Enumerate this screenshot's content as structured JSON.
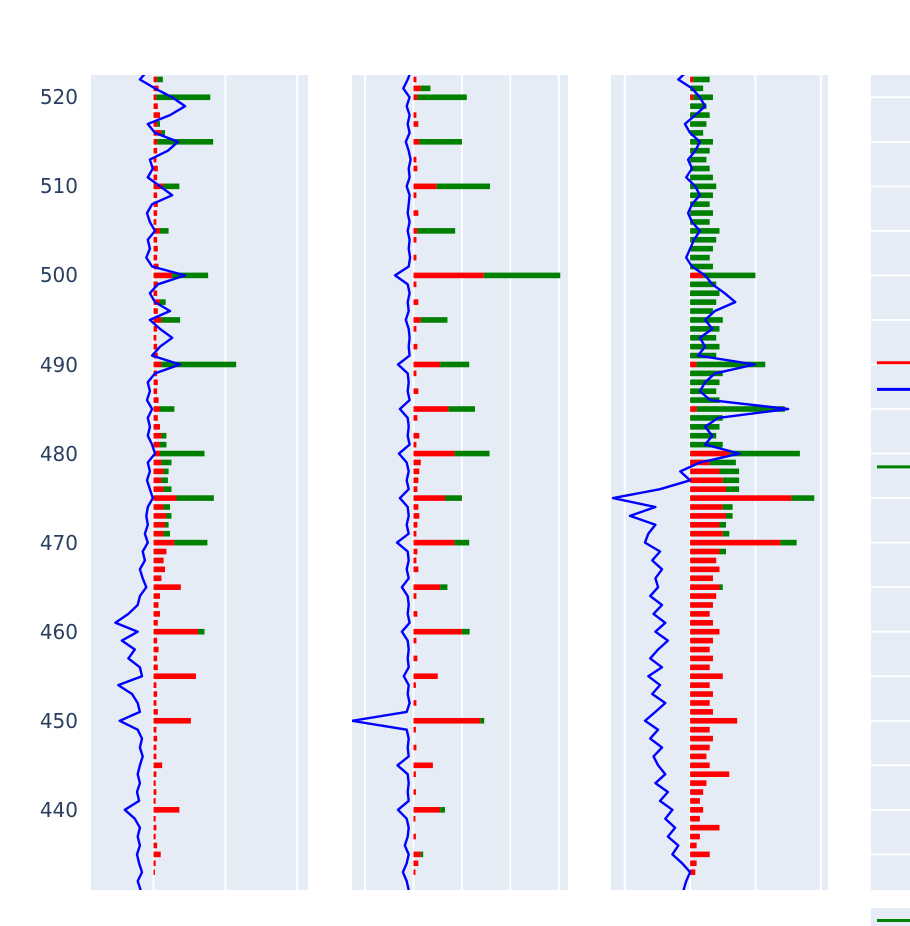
{
  "chart_data": {
    "type": "bar",
    "orientation": "horizontal",
    "title": "",
    "legend": "none-visible",
    "grid": "on",
    "colors": {
      "background": "#e5ecf6",
      "grid": "#ffffff",
      "red": "#ff0000",
      "green": "#008000",
      "blue": "#0000ff",
      "tick": "#2a3f5f"
    },
    "y_axis": {
      "range": [
        431.0,
        522.5
      ],
      "ticks": [
        520,
        510,
        500,
        490,
        480,
        470,
        460,
        450,
        440
      ]
    },
    "bottom_fragment": {
      "color": "green"
    },
    "panels": [
      {
        "name": "panel-1",
        "x_range": [
          -0.87,
          2.15
        ],
        "x_gridlines": [
          0,
          1,
          2
        ],
        "bars": {
          "y_start": 523,
          "y_step": -1,
          "red": [
            0.04,
            0.05,
            0.07,
            0.04,
            0.06,
            0.09,
            0.05,
            0.11,
            0.05,
            0.05,
            0.04,
            0.06,
            0.05,
            0.14,
            0.05,
            0.06,
            0.05,
            0.04,
            0.09,
            0.05,
            0.06,
            0.05,
            0.07,
            0.26,
            0.06,
            0.05,
            0.09,
            0.06,
            0.11,
            0.05,
            0.04,
            0.05,
            0.06,
            0.11,
            0.05,
            0.06,
            0.05,
            0.07,
            0.09,
            0.06,
            0.09,
            0.11,
            0.09,
            0.09,
            0.11,
            0.14,
            0.11,
            0.14,
            0.32,
            0.14,
            0.18,
            0.16,
            0.14,
            0.29,
            0.18,
            0.14,
            0.16,
            0.11,
            0.38,
            0.09,
            0.07,
            0.09,
            0.06,
            0.62,
            0.05,
            0.07,
            0.05,
            0.06,
            0.59,
            0.04,
            0.05,
            0.04,
            0.06,
            0.52,
            0.04,
            0.05,
            0.04,
            0.04,
            0.12,
            0.04,
            0.03,
            0.04,
            0.03,
            0.36,
            0.03,
            0.04,
            0.03,
            0.05,
            0.1,
            0.03,
            0.02
          ],
          "green": [
            0,
            0.08,
            0,
            0.75,
            0,
            0,
            0.04,
            0.05,
            0.78,
            0,
            0,
            0,
            0,
            0.22,
            0,
            0,
            0,
            0,
            0.12,
            0,
            0,
            0,
            0,
            0.5,
            0,
            0,
            0.08,
            0,
            0.26,
            0,
            0,
            0,
            0,
            1.04,
            0,
            0,
            0,
            0,
            0.2,
            0,
            0,
            0.07,
            0.09,
            0.62,
            0.14,
            0.07,
            0.09,
            0.11,
            0.52,
            0.09,
            0.07,
            0.05,
            0.09,
            0.46,
            0,
            0,
            0,
            0,
            0,
            0,
            0,
            0,
            0,
            0.09,
            0,
            0,
            0,
            0,
            0,
            0,
            0,
            0,
            0,
            0,
            0,
            0,
            0,
            0,
            0,
            0,
            0,
            0,
            0,
            0,
            0,
            0,
            0,
            0,
            0,
            0,
            0
          ]
        },
        "line": {
          "y_start": 523,
          "y_step": -1,
          "x": [
            -0.08,
            -0.19,
            0.02,
            0.26,
            0.44,
            0.23,
            -0.08,
            0.02,
            0.34,
            0.2,
            -0.05,
            -0.01,
            -0.08,
            0.09,
            0.26,
            -0.02,
            -0.09,
            -0.05,
            0.02,
            -0.08,
            -0.05,
            -0.1,
            -0.02,
            0.44,
            0.06,
            -0.05,
            0.02,
            0.23,
            -0.05,
            0.09,
            0.26,
            0.09,
            -0.02,
            0.37,
            0.02,
            -0.08,
            -0.05,
            -0.09,
            -0.02,
            -0.08,
            -0.05,
            -0.08,
            -0.02,
            0.02,
            -0.08,
            -0.05,
            -0.09,
            -0.05,
            -0.01,
            -0.08,
            -0.1,
            -0.08,
            -0.12,
            -0.08,
            -0.15,
            -0.12,
            -0.19,
            -0.15,
            -0.1,
            -0.19,
            -0.22,
            -0.35,
            -0.53,
            -0.22,
            -0.44,
            -0.26,
            -0.35,
            -0.19,
            -0.16,
            -0.49,
            -0.3,
            -0.22,
            -0.19,
            -0.47,
            -0.22,
            -0.16,
            -0.19,
            -0.15,
            -0.19,
            -0.22,
            -0.19,
            -0.23,
            -0.2,
            -0.4,
            -0.26,
            -0.19,
            -0.22,
            -0.19,
            -0.23,
            -0.2,
            -0.16,
            -0.22,
            -0.18
          ]
        }
      },
      {
        "name": "panel-2",
        "x_range": [
          -1.27,
          3.19
        ],
        "x_gridlines": [
          -1,
          0,
          1,
          2,
          3
        ],
        "bars": {
          "y_start": 523,
          "y_step": -1,
          "red": [
            0,
            0.06,
            0.15,
            0.08,
            0,
            0.06,
            0.1,
            0,
            0.12,
            0,
            0.06,
            0.08,
            0,
            0.48,
            0.06,
            0,
            0.1,
            0,
            0.08,
            0.06,
            0,
            0.06,
            0,
            1.45,
            0.06,
            0,
            0.1,
            0,
            0.15,
            0.06,
            0,
            0.08,
            0,
            0.55,
            0.06,
            0,
            0.1,
            0,
            0.72,
            0.08,
            0,
            0.12,
            0.06,
            0.85,
            0.15,
            0.12,
            0.1,
            0.08,
            0.65,
            0.1,
            0.12,
            0.08,
            0.06,
            0.85,
            0.08,
            0.06,
            0.1,
            0,
            0.55,
            0.06,
            0,
            0.08,
            0,
            1.0,
            0.06,
            0,
            0.08,
            0,
            0.5,
            0.05,
            0,
            0.06,
            0,
            1.38,
            0.05,
            0,
            0.06,
            0,
            0.4,
            0.05,
            0,
            0.05,
            0,
            0.55,
            0.04,
            0,
            0.05,
            0,
            0.15,
            0.1,
            0.04
          ],
          "green": [
            0,
            0,
            0.2,
            1.02,
            0,
            0,
            0,
            0,
            0.88,
            0,
            0,
            0,
            0,
            1.1,
            0,
            0,
            0,
            0,
            0.78,
            0,
            0,
            0,
            0,
            1.58,
            0,
            0,
            0,
            0,
            0.55,
            0,
            0,
            0,
            0,
            0.6,
            0,
            0,
            0,
            0,
            0.55,
            0,
            0,
            0,
            0,
            0.72,
            0,
            0,
            0,
            0,
            0.35,
            0,
            0,
            0,
            0,
            0.3,
            0,
            0,
            0,
            0,
            0.15,
            0,
            0,
            0,
            0,
            0.16,
            0,
            0,
            0,
            0,
            0,
            0,
            0,
            0,
            0,
            0.08,
            0,
            0,
            0,
            0,
            0,
            0,
            0,
            0,
            0,
            0.1,
            0,
            0,
            0,
            0,
            0.05,
            0,
            0
          ]
        },
        "line": {
          "y_start": 523,
          "y_step": -1,
          "x": [
            -0.05,
            -0.12,
            -0.21,
            -0.08,
            -0.14,
            -0.08,
            -0.12,
            -0.08,
            -0.16,
            -0.1,
            -0.06,
            -0.1,
            -0.08,
            -0.14,
            -0.08,
            -0.1,
            -0.12,
            -0.08,
            -0.12,
            -0.08,
            -0.1,
            -0.07,
            -0.1,
            -0.38,
            -0.12,
            -0.08,
            -0.12,
            -0.1,
            -0.16,
            -0.1,
            -0.08,
            -0.1,
            -0.08,
            -0.32,
            -0.12,
            -0.1,
            -0.12,
            -0.08,
            -0.28,
            -0.12,
            -0.1,
            -0.12,
            -0.08,
            -0.3,
            -0.14,
            -0.1,
            -0.14,
            -0.1,
            -0.28,
            -0.12,
            -0.1,
            -0.14,
            -0.1,
            -0.34,
            -0.12,
            -0.1,
            -0.14,
            -0.1,
            -0.24,
            -0.12,
            -0.1,
            -0.12,
            -0.08,
            -0.24,
            -0.12,
            -0.1,
            -0.12,
            -0.1,
            -0.2,
            -0.1,
            -0.12,
            -0.08,
            -0.14,
            -1.27,
            -0.14,
            -0.1,
            -0.12,
            -0.1,
            -0.33,
            -0.12,
            -0.1,
            -0.12,
            -0.1,
            -0.32,
            -0.14,
            -0.1,
            -0.12,
            -0.18,
            -0.1,
            -0.14,
            -0.22,
            -0.14,
            -0.1
          ]
        }
      },
      {
        "name": "panel-3",
        "x_range": [
          -1.21,
          2.11
        ],
        "x_gridlines": [
          -1,
          0,
          1,
          2
        ],
        "bars": {
          "y_start": 523,
          "y_step": -1,
          "red": [
            0,
            0.05,
            0,
            0.05,
            0,
            0,
            0,
            0,
            0,
            0,
            0,
            0,
            0,
            0,
            0,
            0,
            0,
            0,
            0,
            0,
            0,
            0,
            0,
            0.2,
            0,
            0,
            0,
            0,
            0,
            0,
            0,
            0,
            0,
            0.1,
            0,
            0,
            0,
            0,
            0.1,
            0,
            0,
            0,
            0,
            0.6,
            0.3,
            0.45,
            0.5,
            0.55,
            1.55,
            0.5,
            0.55,
            0.45,
            0.5,
            1.38,
            0.45,
            0.4,
            0.45,
            0.35,
            0.45,
            0.4,
            0.35,
            0.3,
            0.35,
            0.45,
            0.35,
            0.3,
            0.35,
            0.3,
            0.5,
            0.3,
            0.35,
            0.3,
            0.35,
            0.72,
            0.3,
            0.35,
            0.3,
            0.25,
            0.3,
            0.6,
            0.25,
            0.2,
            0.15,
            0.2,
            0.15,
            0.45,
            0.15,
            0.1,
            0.3,
            0.1,
            0.08
          ],
          "green": [
            0.15,
            0.25,
            0.2,
            0.3,
            0.25,
            0.3,
            0.25,
            0.2,
            0.35,
            0.3,
            0.25,
            0.3,
            0.35,
            0.4,
            0.35,
            0.3,
            0.35,
            0.3,
            0.45,
            0.4,
            0.35,
            0.3,
            0.35,
            0.8,
            0.4,
            0.45,
            0.4,
            0.35,
            0.5,
            0.45,
            0.4,
            0.45,
            0.4,
            1.05,
            0.5,
            0.45,
            0.4,
            0.45,
            1.35,
            0.5,
            0.45,
            0.4,
            0.5,
            1.08,
            0.4,
            0.3,
            0.25,
            0.2,
            0.35,
            0.15,
            0.1,
            0.1,
            0.1,
            0.25,
            0.1,
            0,
            0,
            0,
            0.05,
            0,
            0,
            0,
            0,
            0,
            0,
            0,
            0,
            0,
            0,
            0,
            0,
            0,
            0,
            0,
            0,
            0,
            0,
            0,
            0,
            0,
            0,
            0,
            0,
            0,
            0,
            0,
            0,
            0,
            0,
            0,
            0
          ]
        },
        "line": {
          "y_start": 523,
          "y_step": -1,
          "x": [
            -0.03,
            -0.18,
            0.03,
            0.15,
            0.23,
            0.08,
            -0.08,
            0,
            0.15,
            0.08,
            -0.03,
            0.03,
            -0.06,
            0.08,
            0.15,
            0.03,
            -0.03,
            0.03,
            0.15,
            0.06,
            0,
            -0.06,
            0.03,
            0.23,
            0.34,
            0.53,
            0.69,
            0.38,
            0.23,
            0.34,
            0.15,
            0.23,
            0.12,
            0.99,
            0.38,
            0.23,
            0.15,
            0.31,
            1.5,
            0.43,
            0.23,
            0.34,
            0.23,
            0.76,
            0.15,
            -0.15,
            0,
            -0.46,
            -1.18,
            -0.53,
            -0.92,
            -0.53,
            -0.64,
            -0.69,
            -0.46,
            -0.58,
            -0.43,
            -0.53,
            -0.49,
            -0.61,
            -0.43,
            -0.56,
            -0.38,
            -0.53,
            -0.34,
            -0.49,
            -0.61,
            -0.43,
            -0.64,
            -0.46,
            -0.58,
            -0.38,
            -0.53,
            -0.69,
            -0.49,
            -0.61,
            -0.43,
            -0.56,
            -0.49,
            -0.38,
            -0.53,
            -0.34,
            -0.46,
            -0.27,
            -0.38,
            -0.23,
            -0.34,
            -0.18,
            -0.27,
            -0.12,
            0,
            -0.06,
            -0.1
          ]
        }
      },
      {
        "name": "panel-4-partial",
        "x_range": [
          0,
          1
        ],
        "x_gridlines": [],
        "y_gridlines": [
          520,
          515,
          510,
          505,
          500,
          495,
          490,
          485,
          480,
          475,
          470,
          465,
          460,
          455,
          450,
          445,
          440,
          435
        ],
        "h_lines": [
          {
            "y": 490.2,
            "color": "red"
          },
          {
            "y": 487.2,
            "color": "blue"
          },
          {
            "y": 478.5,
            "color": "green"
          }
        ]
      }
    ]
  }
}
